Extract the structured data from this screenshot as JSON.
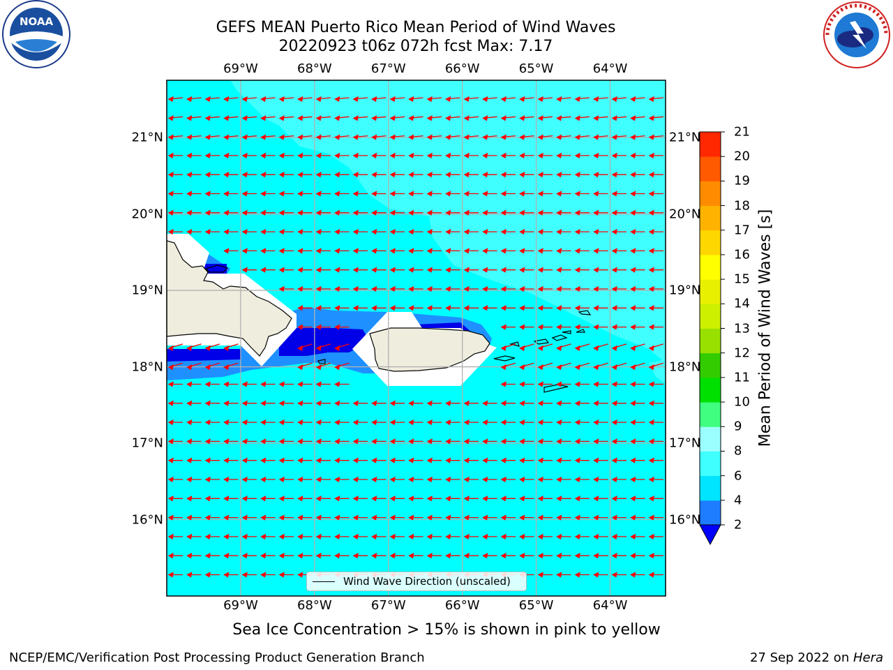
{
  "title": {
    "line1": "GEFS MEAN Puerto Rico Mean Period of Wind Waves",
    "line2": "20220923 t06z 072h fcst   Max: 7.17"
  },
  "logos": {
    "left": {
      "name": "noaa-logo",
      "text": "NOAA"
    },
    "right": {
      "name": "nws-logo",
      "text": "NATIONAL WEATHER SERVICE"
    }
  },
  "map": {
    "lon_labels": [
      "69°W",
      "68°W",
      "67°W",
      "66°W",
      "65°W",
      "64°W"
    ],
    "lat_labels": [
      "21°N",
      "20°N",
      "19°N",
      "18°N",
      "17°N",
      "16°N"
    ],
    "lon_range": [
      -70.0,
      -63.25
    ],
    "lat_range": [
      15.0,
      21.75
    ],
    "colors": {
      "ocean_fill": "#00ffff",
      "light_cyan": "#40ffff",
      "blue": "#1e90ff",
      "dark_blue": "#0000e8",
      "land": "#efedde",
      "arrows": "#ff0000",
      "grid": "#b0b0b0"
    },
    "legend_label": "Wind Wave Direction (unscaled)"
  },
  "colorbar": {
    "title": "Mean Period of Wind Waves [s]",
    "levels": [
      "2",
      "4",
      "6",
      "8",
      "9",
      "10",
      "11",
      "12",
      "13",
      "14",
      "15",
      "16",
      "17",
      "18",
      "19",
      "20",
      "21"
    ],
    "colors": [
      "#1e7dff",
      "#00e5ff",
      "#40ffff",
      "#9cffff",
      "#40ff80",
      "#00e000",
      "#33cc00",
      "#99e000",
      "#ccf000",
      "#e8f000",
      "#ffff00",
      "#ffd700",
      "#ffb300",
      "#ff8c00",
      "#ff5a00",
      "#ff2800"
    ],
    "under_color": "#0000ff",
    "over_color": "#ff0000"
  },
  "note": "Sea Ice Concentration > 15% is shown in pink to yellow",
  "footer": {
    "left": "NCEP/EMC/Verification Post Processing Product Generation Branch",
    "right_prefix": "27 Sep 2022 on ",
    "right_italic": "Hera"
  }
}
